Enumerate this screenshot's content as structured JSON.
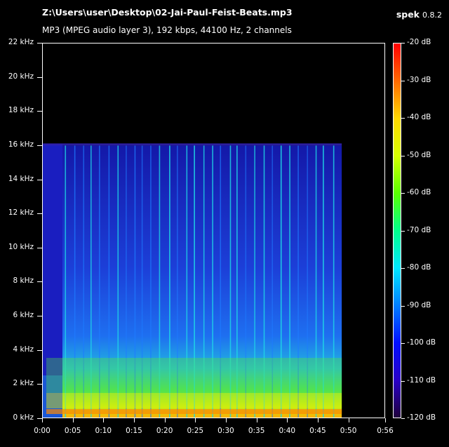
{
  "header": {
    "file_path": "Z:\\Users\\user\\Desktop\\02-Jai-Paul-Feist-Beats.mp3",
    "audio_info": "MP3 (MPEG audio layer 3), 192 kbps, 44100 Hz, 2 channels",
    "app_name": "spek",
    "app_version": "0.8.2"
  },
  "y_axis": {
    "labels": [
      "22 kHz",
      "20 kHz",
      "18 kHz",
      "16 kHz",
      "14 kHz",
      "12 kHz",
      "10 kHz",
      "8 kHz",
      "6 kHz",
      "4 kHz",
      "2 kHz",
      "0 kHz"
    ]
  },
  "x_axis": {
    "labels": [
      "0:00",
      "0:05",
      "0:10",
      "0:15",
      "0:20",
      "0:25",
      "0:30",
      "0:35",
      "0:40",
      "0:45",
      "0:50",
      "0:56"
    ]
  },
  "colorbar": {
    "labels": [
      "-20 dB",
      "-30 dB",
      "-40 dB",
      "-50 dB",
      "-60 dB",
      "-70 dB",
      "-80 dB",
      "-90 dB",
      "-100 dB",
      "-110 dB",
      "-120 dB"
    ],
    "colors": [
      "#ff0000",
      "#ff6a00",
      "#ffd800",
      "#d8ff00",
      "#5aff00",
      "#00ff8c",
      "#00e8ff",
      "#0080ff",
      "#0010ff",
      "#2a00c8",
      "#20003c"
    ]
  },
  "spectrogram": {
    "duration_s": 56,
    "max_freq_khz": 22,
    "content_end_s": 49,
    "cutoff_khz": 16,
    "colors": {
      "background": "#000000",
      "bg_blue": "#1a22c8",
      "mid": "#1e7bff",
      "cyan": "#1fd8e6",
      "green": "#55e83a",
      "yellow": "#e6f000",
      "orange": "#ff8800"
    }
  }
}
